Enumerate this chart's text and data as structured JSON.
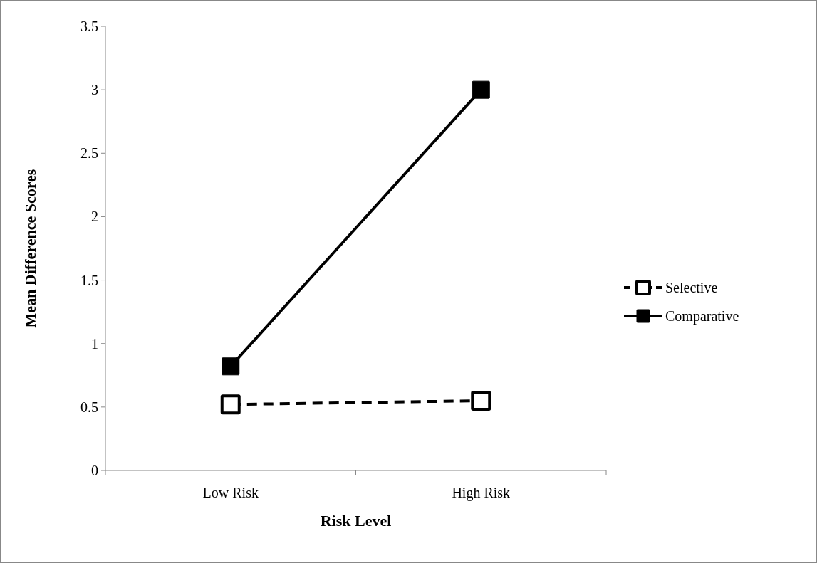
{
  "chart_data": {
    "type": "line",
    "xlabel": "Risk Level",
    "ylabel": "Mean Difference Scores",
    "categories": [
      "Low Risk",
      "High Risk"
    ],
    "series": [
      {
        "name": "Selective",
        "color": "#000000",
        "values": [
          0.52,
          0.55
        ],
        "line_style": "dashed",
        "marker": "square"
      },
      {
        "name": "Comparative",
        "color": "#000000",
        "values": [
          0.82,
          3.0
        ],
        "line_style": "solid",
        "marker": "square"
      }
    ],
    "ylim": [
      0,
      3.5
    ],
    "yticks": [
      0,
      0.5,
      1,
      1.5,
      2,
      2.5,
      3,
      3.5
    ],
    "grid": false,
    "legend": "right"
  }
}
